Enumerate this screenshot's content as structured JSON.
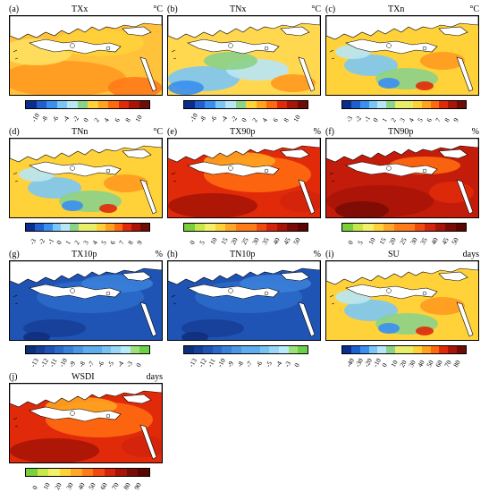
{
  "panels": [
    {
      "id": "a",
      "label": "(a)",
      "title": "TXx",
      "unit": "°C",
      "ticks": [
        "-10",
        "-8",
        "-6",
        "-4",
        "-2",
        "0",
        "2",
        "4",
        "6",
        "8",
        "10"
      ],
      "scheme": "div",
      "map": "warm"
    },
    {
      "id": "b",
      "label": "(b)",
      "title": "TNx",
      "unit": "°C",
      "ticks": [
        "-10",
        "-8",
        "-6",
        "-4",
        "-2",
        "0",
        "2",
        "4",
        "6",
        "8",
        "10"
      ],
      "scheme": "div",
      "map": "mixed"
    },
    {
      "id": "c",
      "label": "(c)",
      "title": "TXn",
      "unit": "°C",
      "ticks": [
        "-3",
        "-2",
        "-1",
        "0",
        "1",
        "2",
        "3",
        "4",
        "5",
        "6",
        "7",
        "8",
        "9"
      ],
      "scheme": "div",
      "map": "patchy"
    },
    {
      "id": "d",
      "label": "(d)",
      "title": "TNn",
      "unit": "°C",
      "ticks": [
        "-3",
        "-2",
        "-1",
        "0",
        "1",
        "2",
        "3",
        "4",
        "5",
        "6",
        "7",
        "8",
        "9"
      ],
      "scheme": "div",
      "map": "patchy"
    },
    {
      "id": "e",
      "label": "(e)",
      "title": "TX90p",
      "unit": "%",
      "ticks": [
        "0",
        "5",
        "10",
        "15",
        "20",
        "25",
        "30",
        "35",
        "40",
        "45",
        "50"
      ],
      "scheme": "seq",
      "map": "hot"
    },
    {
      "id": "f",
      "label": "(f)",
      "title": "TN90p",
      "unit": "%",
      "ticks": [
        "0",
        "5",
        "10",
        "15",
        "20",
        "25",
        "30",
        "35",
        "40",
        "45",
        "50"
      ],
      "scheme": "seq",
      "map": "hotter"
    },
    {
      "id": "g",
      "label": "(g)",
      "title": "TX10p",
      "unit": "%",
      "ticks": [
        "-13",
        "-12",
        "-11",
        "-10",
        "-9",
        "-8",
        "-7",
        "-6",
        "-5",
        "-4",
        "-3",
        "0"
      ],
      "scheme": "blue",
      "map": "blue"
    },
    {
      "id": "h",
      "label": "(h)",
      "title": "TN10p",
      "unit": "%",
      "ticks": [
        "-13",
        "-12",
        "-11",
        "-10",
        "-9",
        "-8",
        "-7",
        "-6",
        "-5",
        "-4",
        "-3",
        "0"
      ],
      "scheme": "blue",
      "map": "blue"
    },
    {
      "id": "i",
      "label": "(i)",
      "title": "SU",
      "unit": "days",
      "ticks": [
        "-40",
        "-30",
        "-20",
        "-10",
        "0",
        "10",
        "20",
        "30",
        "40",
        "50",
        "60",
        "70",
        "80"
      ],
      "scheme": "div",
      "map": "patchy"
    },
    {
      "id": "j",
      "label": "(j)",
      "title": "WSDI",
      "unit": "days",
      "ticks": [
        "0",
        "10",
        "20",
        "30",
        "40",
        "50",
        "60",
        "70",
        "80",
        "90"
      ],
      "scheme": "seq",
      "map": "hot"
    }
  ],
  "palettes": {
    "div": [
      "#0b2d8c",
      "#1f5fd0",
      "#3a8ff0",
      "#7cc6f5",
      "#b8e6f7",
      "#8bd28a",
      "#e8ee6a",
      "#ffd23a",
      "#ffa320",
      "#ff6a10",
      "#e02a0a",
      "#a81406",
      "#6e0c06"
    ],
    "seq": [
      "#7ad03a",
      "#c6e84a",
      "#f5f06a",
      "#ffd23a",
      "#ffa828",
      "#ff7a18",
      "#f04a10",
      "#d4240c",
      "#a81408",
      "#7a0c06",
      "#5a0604"
    ],
    "blue": [
      "#0e2f7a",
      "#163f98",
      "#1f54b4",
      "#2a6ac8",
      "#3a80d8",
      "#4c96e4",
      "#60acec",
      "#78c2f2",
      "#98d8f6",
      "#b8ecfa",
      "#9ee07a",
      "#6ad04a"
    ]
  }
}
